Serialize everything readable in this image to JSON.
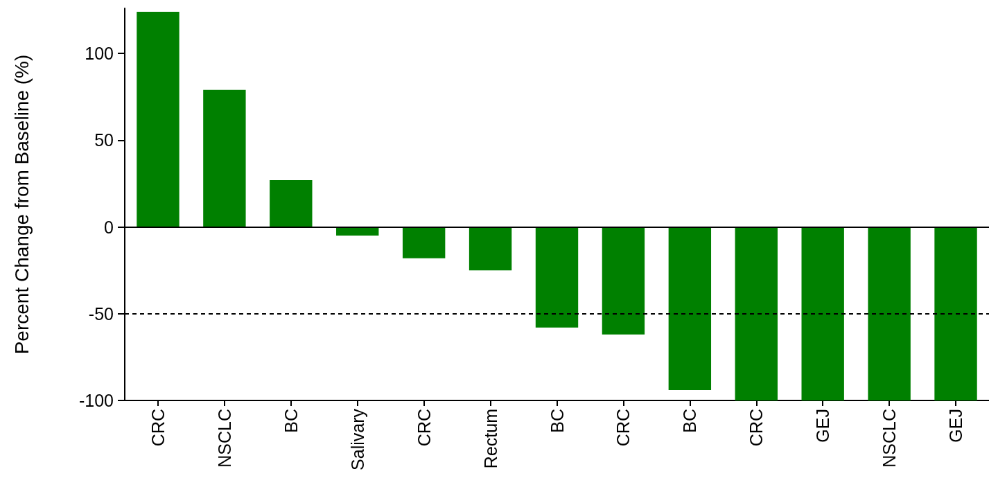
{
  "chart_data": {
    "type": "bar",
    "ylabel": "Percent Change from Baseline (%)",
    "categories": [
      "CRC",
      "NSCLC",
      "BC",
      "Salivary",
      "CRC",
      "Rectum",
      "BC",
      "CRC",
      "BC",
      "CRC",
      "GEJ",
      "NSCLC",
      "GEJ"
    ],
    "values": [
      124,
      79,
      27,
      -5,
      -18,
      -25,
      -58,
      -62,
      -94,
      -100,
      -100,
      -100,
      -100
    ],
    "color": "#008000",
    "ylim": [
      -100,
      126
    ],
    "yticks": [
      -100,
      -50,
      0,
      50,
      100
    ],
    "grid": false,
    "ref_lines": [
      {
        "axis": "y",
        "value": 0,
        "line_style": "solid",
        "color": "#000000"
      },
      {
        "axis": "y",
        "value": -50,
        "line_style": "dashed",
        "color": "#000000"
      }
    ]
  }
}
